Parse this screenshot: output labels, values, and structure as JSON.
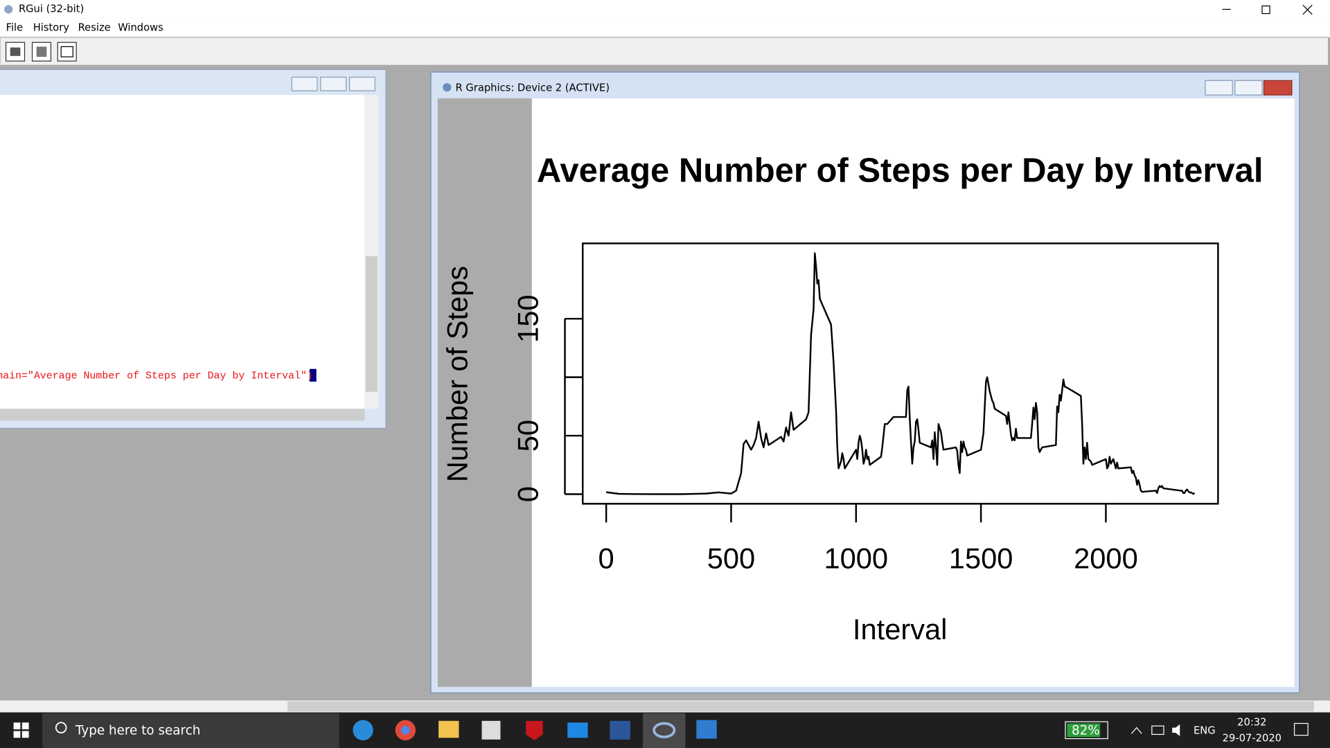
{
  "window": {
    "title": "RGui (32-bit)",
    "menu": [
      "File",
      "History",
      "Resize",
      "Windows"
    ]
  },
  "console": {
    "line": "main=\"Average Number of Steps per Day by Interval\")"
  },
  "graphics_window": {
    "title": "R Graphics: Device 2 (ACTIVE)"
  },
  "chart_data": {
    "type": "line",
    "title": "Average Number of Steps per Day by Interval",
    "x_label": "Interval",
    "y_label": "Number of Steps",
    "color": "#000000",
    "x": [
      0,
      50,
      100,
      200,
      300,
      400,
      450,
      475,
      500,
      520,
      540,
      550,
      560,
      570,
      580,
      590,
      600,
      610,
      620,
      630,
      640,
      650,
      700,
      710,
      720,
      730,
      740,
      750,
      800,
      810,
      820,
      830,
      835,
      840,
      845,
      850,
      855,
      900,
      910,
      920,
      925,
      930,
      935,
      940,
      945,
      950,
      955,
      1000,
      1005,
      1010,
      1015,
      1020,
      1025,
      1030,
      1035,
      1040,
      1045,
      1050,
      1055,
      1100,
      1105,
      1115,
      1125,
      1150,
      1200,
      1205,
      1210,
      1215,
      1220,
      1225,
      1230,
      1235,
      1240,
      1245,
      1250,
      1255,
      1300,
      1305,
      1310,
      1315,
      1320,
      1325,
      1330,
      1340,
      1345,
      1350,
      1400,
      1405,
      1410,
      1415,
      1420,
      1425,
      1430,
      1435,
      1440,
      1445,
      1500,
      1505,
      1510,
      1515,
      1520,
      1525,
      1535,
      1545,
      1550,
      1555,
      1600,
      1605,
      1610,
      1620,
      1625,
      1630,
      1635,
      1640,
      1645,
      1700,
      1705,
      1710,
      1715,
      1720,
      1725,
      1730,
      1735,
      1745,
      1800,
      1805,
      1810,
      1815,
      1820,
      1830,
      1835,
      1845,
      1900,
      1905,
      1910,
      1915,
      1920,
      1925,
      1930,
      1940,
      1945,
      2000,
      2005,
      2010,
      2015,
      2020,
      2030,
      2040,
      2045,
      2050,
      2100,
      2105,
      2110,
      2115,
      2120,
      2125,
      2130,
      2135,
      2140,
      2145,
      2200,
      2205,
      2210,
      2215,
      2220,
      2225,
      2230,
      2300,
      2305,
      2310,
      2315,
      2320,
      2325,
      2330,
      2335,
      2340,
      2345,
      2350,
      2355
    ],
    "values": [
      1.7,
      0.3,
      0.1,
      0,
      0,
      0.5,
      1.5,
      1,
      0.5,
      3,
      18,
      43,
      46,
      42,
      38,
      42,
      48,
      62,
      48,
      40,
      52,
      42,
      49,
      45,
      57,
      50,
      70,
      55,
      64,
      70,
      136,
      158,
      206,
      195,
      180,
      183,
      167,
      145,
      113,
      72,
      40,
      22,
      25,
      28,
      35,
      30,
      22,
      38,
      30,
      44,
      50,
      46,
      38,
      26,
      30,
      38,
      30,
      32,
      25,
      32,
      40,
      60,
      60,
      66,
      66,
      89,
      92,
      65,
      45,
      26,
      40,
      45,
      62,
      64,
      55,
      44,
      40,
      46,
      30,
      53,
      40,
      25,
      60,
      53,
      45,
      38,
      40,
      37,
      25,
      18,
      45,
      36,
      45,
      40,
      38,
      33,
      38,
      45,
      52,
      74,
      96,
      100,
      88,
      80,
      78,
      73,
      67,
      60,
      70,
      51,
      46,
      48,
      46,
      56,
      48,
      48,
      60,
      74,
      64,
      78,
      70,
      40,
      36,
      40,
      42,
      75,
      70,
      85,
      80,
      98,
      92,
      91,
      84,
      60,
      26,
      40,
      30,
      44,
      30,
      28,
      25,
      30,
      22,
      24,
      32,
      26,
      30,
      22,
      27,
      22,
      23,
      18,
      20,
      16,
      14,
      8,
      12,
      8,
      3,
      2,
      3,
      1,
      5,
      7,
      6,
      7,
      5,
      3,
      3,
      1,
      1,
      3,
      4,
      2.5,
      1.5,
      1.5,
      1,
      0.2,
      1
    ],
    "xlim": [
      -94,
      2449
    ],
    "ylim": [
      -8.2,
      214.4
    ],
    "xticks": [
      0,
      500,
      1000,
      1500,
      2000
    ],
    "yticks": [
      0,
      50,
      {
        "value": 100,
        "label": null
      },
      150
    ]
  },
  "taskbar": {
    "search": "Type here to search",
    "battery": "82%",
    "language": "ENG",
    "time": "20:32",
    "date": "29-07-2020"
  }
}
